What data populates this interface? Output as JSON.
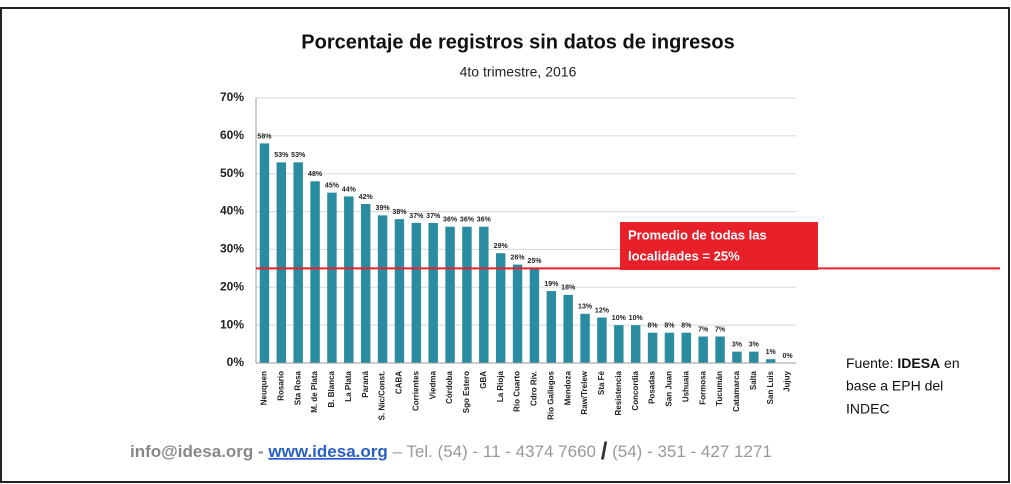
{
  "chart_data": {
    "type": "bar",
    "title": "Porcentaje de registros sin datos de ingresos",
    "subtitle": "4to trimestre, 2016",
    "categories": [
      "Neuquen",
      "Rosario",
      "Sta Rosa",
      "M. de Plata",
      "B. Blanca",
      "La Plata",
      "Paraná",
      "S. Nic/Const.",
      "CABA",
      "Corrientes",
      "Viedma",
      "Córdoba",
      "Sgo Estero",
      "GBA",
      "La Rioja",
      "Río Cuarto",
      "Cdro Riv.",
      "Río Gallegos",
      "Mendoza",
      "Raw/Trelew",
      "Sta Fé",
      "Resistencia",
      "Concordia",
      "Posadas",
      "San Juan",
      "Ushuaia",
      "Formosa",
      "Tucumán",
      "Catamarca",
      "Salta",
      "San Luis",
      "Jujuy"
    ],
    "values": [
      58,
      53,
      53,
      48,
      45,
      44,
      42,
      39,
      38,
      37,
      37,
      36,
      36,
      36,
      29,
      26,
      25,
      19,
      18,
      13,
      12,
      10,
      10,
      8,
      8,
      8,
      7,
      7,
      3,
      3,
      1,
      0
    ],
    "value_labels": [
      "58%",
      "53%",
      "53%",
      "48%",
      "45%",
      "44%",
      "42%",
      "39%",
      "38%",
      "37%",
      "37%",
      "36%",
      "36%",
      "36%",
      "29%",
      "26%",
      "25%",
      "19%",
      "18%",
      "13%",
      "12%",
      "10%",
      "10%",
      "8%",
      "8%",
      "8%",
      "7%",
      "7%",
      "3%",
      "3%",
      "1%",
      "0%"
    ],
    "color": "#2a8ca0",
    "ylim": [
      0,
      70
    ],
    "yticks": [
      {
        "value": 0,
        "label": "0%"
      },
      {
        "value": 10,
        "label": "10%"
      },
      {
        "value": 20,
        "label": "20%"
      },
      {
        "value": 30,
        "label": "30%"
      },
      {
        "value": 40,
        "label": "40%"
      },
      {
        "value": 50,
        "label": "50%"
      },
      {
        "value": 60,
        "label": "60%"
      },
      {
        "value": 70,
        "label": "70%"
      }
    ],
    "grid": true,
    "average_line": {
      "value": 25,
      "label_lines": [
        "Promedio de todas las",
        "localidades = 25%"
      ],
      "color": "#e8202a"
    },
    "source": {
      "prefix": "Fuente: ",
      "org": "IDESA",
      "suffix": " en",
      "lines": [
        "base a EPH del",
        "INDEC"
      ]
    },
    "footer": {
      "email": "info@idesa.org",
      "sep": " - ",
      "web": "www.idesa.org",
      "tel1": " – Tel. (54) - 11 - 4374 7660 ",
      "slash": "/",
      "tel2": " (54) - 351 - 427 1271"
    }
  }
}
